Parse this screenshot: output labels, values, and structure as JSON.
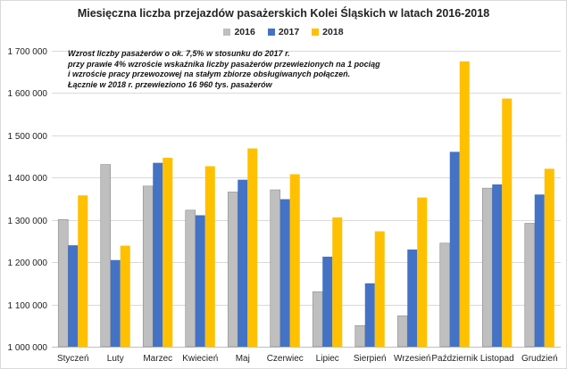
{
  "chart_data": {
    "type": "bar",
    "title": "Miesięczna liczba przejazdów pasażerskich Kolei Śląskich w latach 2016-2018",
    "categories": [
      "Styczeń",
      "Luty",
      "Marzec",
      "Kwiecień",
      "Maj",
      "Czerwiec",
      "Lipiec",
      "Sierpień",
      "Wrzesień",
      "Październik",
      "Listopad",
      "Grudzień"
    ],
    "series": [
      {
        "name": "2016",
        "color": "#bfbfbf",
        "values": [
          1301000,
          1431000,
          1380000,
          1323000,
          1366000,
          1371000,
          1130000,
          1050000,
          1073000,
          1245000,
          1375000,
          1292000
        ]
      },
      {
        "name": "2017",
        "color": "#4472c4",
        "values": [
          1240000,
          1205000,
          1435000,
          1311000,
          1395000,
          1349000,
          1213000,
          1150000,
          1230000,
          1461000,
          1384000,
          1360000
        ]
      },
      {
        "name": "2018",
        "color": "#ffc000",
        "values": [
          1358000,
          1239000,
          1447000,
          1427000,
          1469000,
          1408000,
          1306000,
          1273000,
          1353000,
          1675000,
          1587000,
          1421000
        ]
      }
    ],
    "ylim": [
      1000000,
      1700000
    ],
    "yticks": [
      "1 000 000",
      "1 100 000",
      "1 200 000",
      "1 300 000",
      "1 400 000",
      "1 500 000",
      "1 600 000",
      "1 700 000"
    ],
    "ytick_values": [
      1000000,
      1100000,
      1200000,
      1300000,
      1400000,
      1500000,
      1600000,
      1700000
    ],
    "xlabel": "",
    "ylabel": "",
    "grid": true,
    "legend": "top-center",
    "annotation": [
      "Wzrost liczby pasażerów o ok. 7,5% w stosunku do 2017 r.",
      "przy prawie 4% wzroście wskaźnika liczby pasażerów przewiezionych na 1 pociąg",
      "i wzroście pracy przewozowej na stałym zbiorze obsługiwanych połączeń.",
      "Łącznie w 2018 r. przewieziono  16 960 tys. pasażerów"
    ]
  },
  "colors": {
    "grid": "#d9d9d9",
    "axis": "#bfbfbf"
  }
}
